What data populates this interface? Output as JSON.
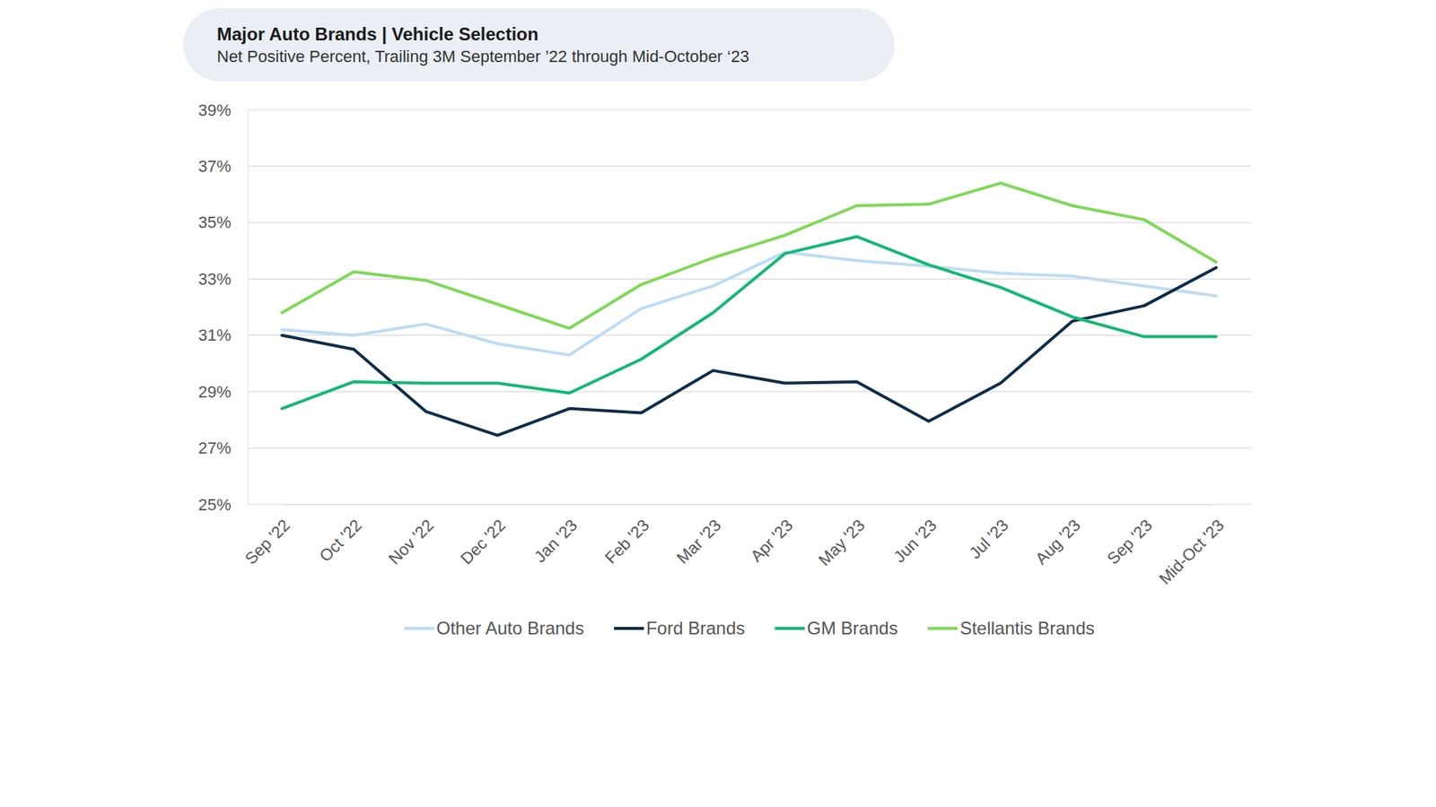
{
  "chart_data": {
    "type": "line",
    "title": "Major Auto Brands | Vehicle Selection",
    "subtitle": "Net Positive Percent, Trailing 3M September ’22 through Mid-October ‘23",
    "categories": [
      "Sep '22",
      "Oct '22",
      "Nov '22",
      "Dec '22",
      "Jan '23",
      "Feb '23",
      "Mar '23",
      "Apr '23",
      "May '23",
      "Jun '23",
      "Jul '23",
      "Aug '23",
      "Sep '23",
      "Mid-Oct '23"
    ],
    "series": [
      {
        "name": "Other Auto Brands",
        "color": "#bcdcf5",
        "values": [
          31.2,
          31.0,
          31.4,
          30.7,
          30.3,
          31.95,
          32.75,
          33.95,
          33.65,
          33.45,
          33.2,
          33.1,
          32.75,
          32.4
        ]
      },
      {
        "name": "Ford Brands",
        "color": "#0d2d4a",
        "values": [
          31.0,
          30.5,
          28.3,
          27.45,
          28.4,
          28.25,
          29.75,
          29.3,
          29.35,
          27.95,
          29.3,
          31.5,
          32.05,
          33.4
        ]
      },
      {
        "name": "GM Brands",
        "color": "#13b874",
        "values": [
          28.4,
          29.35,
          29.3,
          29.3,
          28.95,
          30.15,
          31.8,
          33.9,
          34.5,
          33.5,
          32.7,
          31.65,
          30.95,
          30.95
        ]
      },
      {
        "name": "Stellantis Brands",
        "color": "#7ed957",
        "values": [
          31.8,
          33.25,
          32.95,
          32.1,
          31.25,
          32.8,
          33.75,
          34.55,
          35.6,
          35.65,
          36.4,
          35.6,
          35.1,
          33.6
        ]
      }
    ],
    "ylim": [
      25,
      39
    ],
    "yticks": [
      {
        "value": 25,
        "label": "25%"
      },
      {
        "value": 27,
        "label": "27%"
      },
      {
        "value": 29,
        "label": "29%"
      },
      {
        "value": 31,
        "label": "31%"
      },
      {
        "value": 33,
        "label": "33%"
      },
      {
        "value": 35,
        "label": "35%"
      },
      {
        "value": 37,
        "label": "37%"
      },
      {
        "value": 39,
        "label": "39%"
      }
    ],
    "grid": true,
    "legend": "bottom"
  }
}
